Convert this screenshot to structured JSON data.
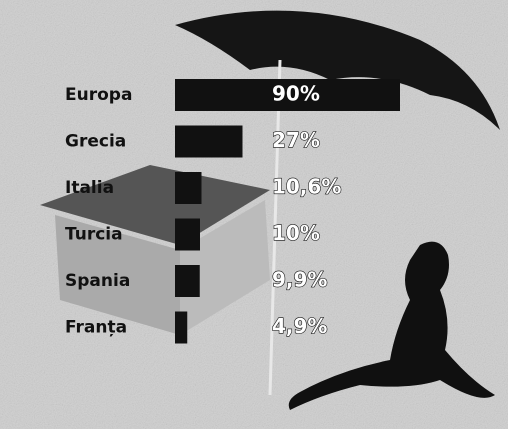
{
  "chart_data": {
    "type": "bar",
    "orientation": "horizontal",
    "categories": [
      "Europa",
      "Grecia",
      "Italia",
      "Turcia",
      "Spania",
      "Franța"
    ],
    "values": [
      90,
      27,
      10.6,
      10,
      9.9,
      4.9
    ],
    "value_labels": [
      "90%",
      "27%",
      "10,6%",
      "10%",
      "9,9%",
      "4,9%"
    ],
    "color": "#111111"
  }
}
